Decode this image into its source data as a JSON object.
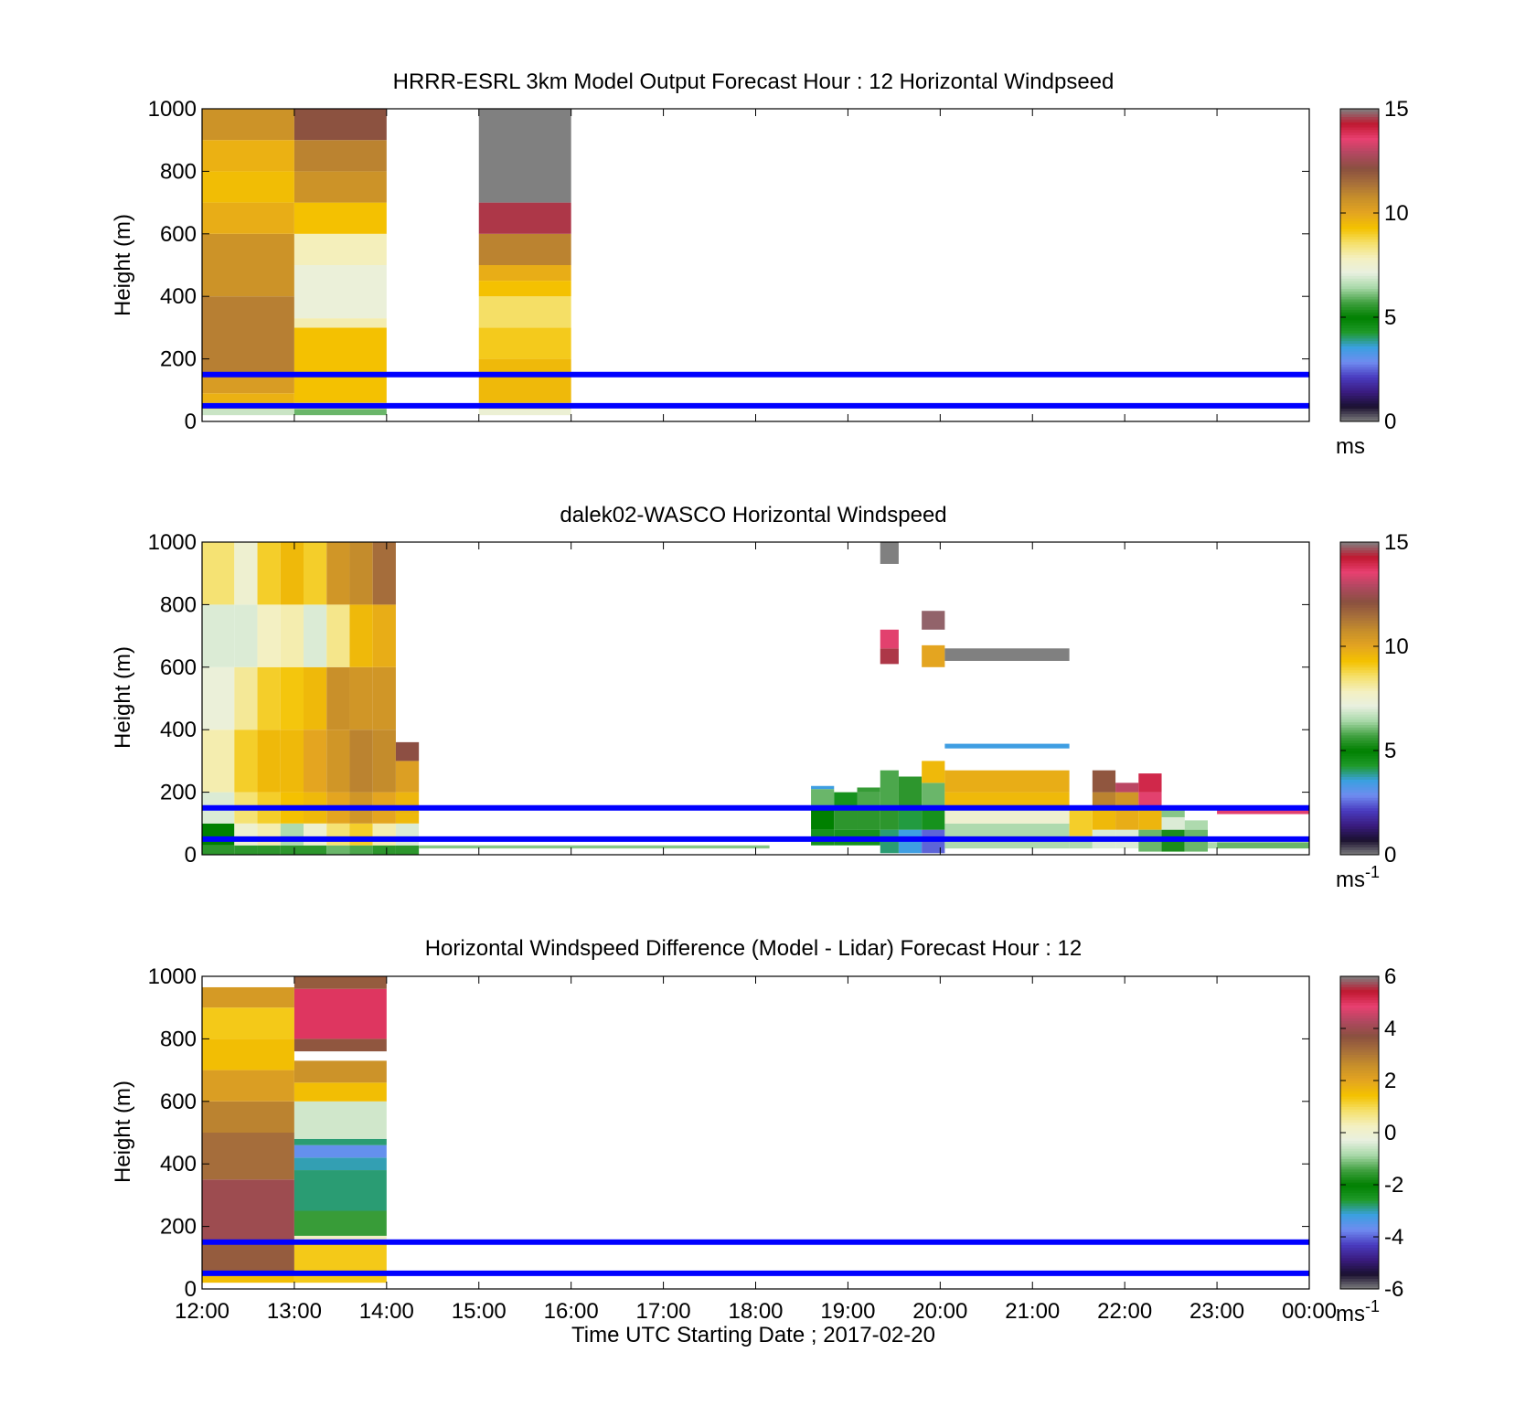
{
  "figure": {
    "xlabel": "Time UTC  Starting Date ; 2017-02-20",
    "x_tick_labels": [
      "12:00",
      "13:00",
      "14:00",
      "15:00",
      "16:00",
      "17:00",
      "18:00",
      "19:00",
      "20:00",
      "21:00",
      "22:00",
      "23:00",
      "00:00"
    ]
  },
  "colormaps": {
    "speed": [
      "#808080",
      "#1a1030",
      "#3a1c80",
      "#4a3cc0",
      "#6f8cf0",
      "#3aa0e0",
      "#1f9a2a",
      "#008000",
      "#40a040",
      "#a8d8a8",
      "#e8f0e0",
      "#f4f0c0",
      "#f5e06a",
      "#f4c200",
      "#e4a520",
      "#c8902a",
      "#a8703a",
      "#8a5040",
      "#b04860",
      "#e84070",
      "#c01830",
      "#808080"
    ]
  },
  "chart_data": [
    {
      "type": "heatmap",
      "title": "HRRR-ESRL 3km Model Output   Forecast Hour : 12 Horizontal Windpseed",
      "ylabel": "Height (m)",
      "xlim": [
        12,
        24
      ],
      "ylim": [
        0,
        1000
      ],
      "y_ticks": [
        0,
        200,
        400,
        600,
        800,
        1000
      ],
      "colorbar": {
        "min": 0,
        "max": 15,
        "ticks": [
          0,
          5,
          10,
          15
        ],
        "unit": "ms"
      },
      "reference_lines_m": [
        50,
        150
      ],
      "reference_line_color": "#0000ff",
      "columns": [
        {
          "t0": 12,
          "t1": 13,
          "cells": [
            [
              20,
              40,
              6.8
            ],
            [
              40,
              60,
              9
            ],
            [
              60,
              90,
              9.7
            ],
            [
              90,
              150,
              10.3
            ],
            [
              150,
              400,
              11.1
            ],
            [
              400,
              600,
              10.6
            ],
            [
              600,
              700,
              9.8
            ],
            [
              700,
              800,
              9.4
            ],
            [
              800,
              900,
              9.7
            ],
            [
              900,
              1000,
              10.6
            ]
          ]
        },
        {
          "t0": 13,
          "t1": 14,
          "cells": [
            [
              20,
              40,
              6
            ],
            [
              40,
              60,
              8.5
            ],
            [
              60,
              300,
              9.3
            ],
            [
              300,
              330,
              8
            ],
            [
              330,
              500,
              7.3
            ],
            [
              500,
              600,
              7.9
            ],
            [
              600,
              700,
              9.3
            ],
            [
              700,
              800,
              10.6
            ],
            [
              800,
              900,
              11
            ],
            [
              900,
              1000,
              12.1
            ]
          ]
        },
        {
          "t0": 15,
          "t1": 16,
          "cells": [
            [
              20,
              40,
              7.4
            ],
            [
              40,
              60,
              8.9
            ],
            [
              60,
              200,
              9.5
            ],
            [
              200,
              300,
              9.1
            ],
            [
              300,
              400,
              8.6
            ],
            [
              400,
              450,
              9.3
            ],
            [
              450,
              500,
              9.8
            ],
            [
              500,
              600,
              11
            ],
            [
              600,
              700,
              14.5
            ],
            [
              700,
              1000,
              15
            ]
          ]
        }
      ]
    },
    {
      "type": "heatmap",
      "title": "dalek02-WASCO  Horizontal Windspeed",
      "ylabel": "Height (m)",
      "xlim": [
        12,
        24
      ],
      "ylim": [
        0,
        1000
      ],
      "y_ticks": [
        0,
        200,
        400,
        600,
        800,
        1000
      ],
      "colorbar": {
        "min": 0,
        "max": 15,
        "ticks": [
          0,
          5,
          10,
          15
        ],
        "unit": "ms-1"
      },
      "reference_lines_m": [
        50,
        150
      ],
      "reference_line_color": "#0000ff",
      "columns": [
        {
          "t0": 12.0,
          "t1": 12.35,
          "cells": [
            [
              0,
              30,
              5.5
            ],
            [
              30,
              100,
              5
            ],
            [
              100,
              200,
              7
            ],
            [
              200,
              400,
              8
            ],
            [
              400,
              600,
              7.3
            ],
            [
              600,
              800,
              7
            ],
            [
              800,
              1000,
              8.5
            ]
          ]
        },
        {
          "t0": 12.35,
          "t1": 12.6,
          "cells": [
            [
              0,
              30,
              5.5
            ],
            [
              30,
              100,
              7.5
            ],
            [
              100,
              200,
              8.5
            ],
            [
              200,
              400,
              9
            ],
            [
              400,
              600,
              8.2
            ],
            [
              600,
              800,
              7
            ],
            [
              800,
              1000,
              7.5
            ]
          ]
        },
        {
          "t0": 12.6,
          "t1": 12.85,
          "cells": [
            [
              0,
              30,
              5.5
            ],
            [
              30,
              100,
              8
            ],
            [
              100,
              200,
              9
            ],
            [
              200,
              400,
              9.5
            ],
            [
              400,
              600,
              9
            ],
            [
              600,
              800,
              7.8
            ],
            [
              800,
              1000,
              9
            ]
          ]
        },
        {
          "t0": 12.85,
          "t1": 13.1,
          "cells": [
            [
              0,
              30,
              5.5
            ],
            [
              30,
              100,
              6.5
            ],
            [
              100,
              200,
              9.3
            ],
            [
              200,
              400,
              9.5
            ],
            [
              400,
              600,
              9.2
            ],
            [
              600,
              800,
              8
            ],
            [
              800,
              1000,
              9.5
            ]
          ]
        },
        {
          "t0": 13.1,
          "t1": 13.35,
          "cells": [
            [
              0,
              30,
              5.5
            ],
            [
              30,
              100,
              7.5
            ],
            [
              100,
              200,
              9.5
            ],
            [
              200,
              400,
              10
            ],
            [
              400,
              600,
              9.5
            ],
            [
              600,
              800,
              7
            ],
            [
              800,
              1000,
              9
            ]
          ]
        },
        {
          "t0": 13.35,
          "t1": 13.6,
          "cells": [
            [
              0,
              30,
              6
            ],
            [
              30,
              100,
              8.5
            ],
            [
              100,
              200,
              10
            ],
            [
              200,
              400,
              10.5
            ],
            [
              400,
              600,
              10.7
            ],
            [
              600,
              800,
              8.3
            ],
            [
              800,
              1000,
              10.5
            ]
          ]
        },
        {
          "t0": 13.6,
          "t1": 13.85,
          "cells": [
            [
              0,
              30,
              5.8
            ],
            [
              30,
              100,
              9
            ],
            [
              100,
              200,
              10.5
            ],
            [
              200,
              400,
              11
            ],
            [
              400,
              600,
              10.5
            ],
            [
              600,
              800,
              9.5
            ],
            [
              800,
              1000,
              10.8
            ]
          ]
        },
        {
          "t0": 13.85,
          "t1": 14.1,
          "cells": [
            [
              0,
              30,
              5.5
            ],
            [
              30,
              100,
              8
            ],
            [
              100,
              200,
              10
            ],
            [
              200,
              400,
              10.8
            ],
            [
              400,
              600,
              10.5
            ],
            [
              600,
              800,
              9.8
            ],
            [
              800,
              1000,
              11.5
            ]
          ]
        },
        {
          "t0": 14.1,
          "t1": 14.35,
          "cells": [
            [
              0,
              30,
              5.5
            ],
            [
              30,
              100,
              7
            ],
            [
              100,
              130,
              9.5
            ],
            [
              130,
              200,
              9.6
            ],
            [
              200,
              300,
              10.2
            ],
            [
              300,
              360,
              12.2
            ]
          ]
        },
        {
          "t0": 14.35,
          "t1": 18.15,
          "cells": [
            [
              20,
              30,
              6.2
            ]
          ]
        },
        {
          "t0": 18.6,
          "t1": 18.85,
          "cells": [
            [
              30,
              80,
              4.5
            ],
            [
              80,
              150,
              5
            ],
            [
              150,
              210,
              6
            ],
            [
              210,
              220,
              3.5
            ]
          ]
        },
        {
          "t0": 18.85,
          "t1": 19.1,
          "cells": [
            [
              30,
              80,
              4.5
            ],
            [
              80,
              150,
              5.5
            ],
            [
              150,
              200,
              4.5
            ]
          ]
        },
        {
          "t0": 19.1,
          "t1": 19.35,
          "cells": [
            [
              30,
              80,
              4.5
            ],
            [
              80,
              150,
              5.5
            ],
            [
              150,
              200,
              5.8
            ],
            [
              200,
              215,
              5.6
            ]
          ]
        },
        {
          "t0": 19.35,
          "t1": 19.55,
          "cells": [
            [
              5,
              80,
              4
            ],
            [
              80,
              150,
              5.5
            ],
            [
              150,
              270,
              5.8
            ],
            [
              610,
              660,
              14.5
            ],
            [
              660,
              720,
              13.5
            ],
            [
              1000,
              930,
              15
            ]
          ]
        },
        {
          "t0": 19.55,
          "t1": 19.8,
          "cells": [
            [
              5,
              80,
              3.5
            ],
            [
              80,
              150,
              4.2
            ],
            [
              150,
              250,
              5.5
            ]
          ]
        },
        {
          "t0": 19.8,
          "t1": 20.05,
          "cells": [
            [
              5,
              80,
              2.5
            ],
            [
              80,
              150,
              4.5
            ],
            [
              150,
              230,
              6
            ],
            [
              230,
              300,
              9.5
            ],
            [
              600,
              670,
              10
            ],
            [
              720,
              780,
              14.8
            ]
          ]
        },
        {
          "t0": 20.05,
          "t1": 21.4,
          "cells": [
            [
              20,
              100,
              6.5
            ],
            [
              100,
              150,
              7.5
            ],
            [
              150,
              200,
              9.5
            ],
            [
              200,
              270,
              9.8
            ],
            [
              340,
              355,
              3.5
            ],
            [
              620,
              660,
              15
            ]
          ]
        },
        {
          "t0": 21.4,
          "t1": 21.65,
          "cells": [
            [
              20,
              60,
              6.5
            ],
            [
              60,
              150,
              9
            ]
          ]
        },
        {
          "t0": 21.65,
          "t1": 21.9,
          "cells": [
            [
              20,
              80,
              7
            ],
            [
              80,
              150,
              9.5
            ],
            [
              150,
              200,
              11
            ],
            [
              200,
              270,
              12
            ]
          ]
        },
        {
          "t0": 21.9,
          "t1": 22.15,
          "cells": [
            [
              20,
              80,
              7
            ],
            [
              80,
              150,
              9.8
            ],
            [
              150,
              200,
              10.5
            ],
            [
              200,
              230,
              13
            ]
          ]
        },
        {
          "t0": 22.15,
          "t1": 22.4,
          "cells": [
            [
              10,
              80,
              6
            ],
            [
              80,
              150,
              9.6
            ],
            [
              150,
              200,
              13.5
            ],
            [
              200,
              260,
              14
            ]
          ]
        },
        {
          "t0": 22.4,
          "t1": 22.65,
          "cells": [
            [
              10,
              80,
              5.3
            ],
            [
              80,
              120,
              7
            ],
            [
              120,
              150,
              6.2
            ]
          ]
        },
        {
          "t0": 22.65,
          "t1": 22.9,
          "cells": [
            [
              10,
              80,
              6
            ],
            [
              80,
              110,
              6.5
            ]
          ]
        },
        {
          "t0": 22.9,
          "t1": 23.0,
          "cells": [
            [
              20,
              40,
              6.5
            ]
          ]
        },
        {
          "t0": 23.0,
          "t1": 24.0,
          "cells": [
            [
              20,
              40,
              6
            ],
            [
              130,
              145,
              13.5
            ]
          ]
        }
      ]
    },
    {
      "type": "heatmap",
      "title": "Horizontal Windspeed Difference (Model - Lidar) Forecast Hour : 12",
      "ylabel": "Height (m)",
      "xlim": [
        12,
        24
      ],
      "ylim": [
        0,
        1000
      ],
      "y_ticks": [
        0,
        200,
        400,
        600,
        800,
        1000
      ],
      "colorbar": {
        "min": -6,
        "max": 6,
        "ticks": [
          -6,
          -4,
          -2,
          0,
          2,
          4,
          6
        ],
        "unit": "ms-1"
      },
      "reference_lines_m": [
        50,
        150
      ],
      "reference_line_color": "#0000ff",
      "columns": [
        {
          "t0": 12,
          "t1": 13,
          "cells": [
            [
              20,
              50,
              1.5
            ],
            [
              50,
              150,
              3.5
            ],
            [
              150,
              350,
              4
            ],
            [
              350,
              500,
              3.2
            ],
            [
              500,
              600,
              2.8
            ],
            [
              600,
              700,
              2.2
            ],
            [
              700,
              800,
              1.5
            ],
            [
              800,
              900,
              1.3
            ],
            [
              900,
              965,
              2.3
            ]
          ]
        },
        {
          "t0": 13,
          "t1": 14,
          "cells": [
            [
              20,
              150,
              1.3
            ],
            [
              150,
              170,
              0.2
            ],
            [
              170,
              250,
              -1.5
            ],
            [
              250,
              380,
              -2.8
            ],
            [
              380,
              420,
              -3
            ],
            [
              420,
              460,
              -3.6
            ],
            [
              460,
              480,
              -2.8
            ],
            [
              480,
              600,
              -0.5
            ],
            [
              600,
              660,
              1.5
            ],
            [
              660,
              730,
              2.5
            ],
            [
              760,
              800,
              3.6
            ],
            [
              800,
              960,
              5
            ],
            [
              960,
              1000,
              3.5
            ]
          ]
        }
      ]
    }
  ]
}
